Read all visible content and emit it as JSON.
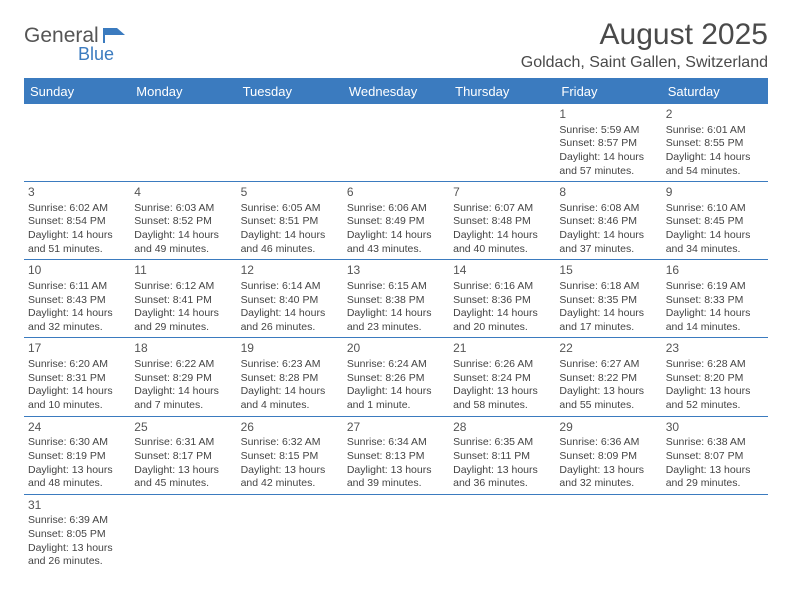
{
  "logo": {
    "word1": "General",
    "word2": "Blue"
  },
  "header": {
    "title": "August 2025",
    "location": "Goldach, Saint Gallen, Switzerland"
  },
  "colors": {
    "header_bg": "#3b7bbf",
    "header_text": "#ffffff",
    "rule": "#3b7bbf",
    "text": "#444444",
    "page_bg": "#ffffff"
  },
  "daysOfWeek": [
    "Sunday",
    "Monday",
    "Tuesday",
    "Wednesday",
    "Thursday",
    "Friday",
    "Saturday"
  ],
  "weeks": [
    [
      null,
      null,
      null,
      null,
      null,
      {
        "n": "1",
        "sr": "Sunrise: 5:59 AM",
        "ss": "Sunset: 8:57 PM",
        "dl1": "Daylight: 14 hours",
        "dl2": "and 57 minutes."
      },
      {
        "n": "2",
        "sr": "Sunrise: 6:01 AM",
        "ss": "Sunset: 8:55 PM",
        "dl1": "Daylight: 14 hours",
        "dl2": "and 54 minutes."
      }
    ],
    [
      {
        "n": "3",
        "sr": "Sunrise: 6:02 AM",
        "ss": "Sunset: 8:54 PM",
        "dl1": "Daylight: 14 hours",
        "dl2": "and 51 minutes."
      },
      {
        "n": "4",
        "sr": "Sunrise: 6:03 AM",
        "ss": "Sunset: 8:52 PM",
        "dl1": "Daylight: 14 hours",
        "dl2": "and 49 minutes."
      },
      {
        "n": "5",
        "sr": "Sunrise: 6:05 AM",
        "ss": "Sunset: 8:51 PM",
        "dl1": "Daylight: 14 hours",
        "dl2": "and 46 minutes."
      },
      {
        "n": "6",
        "sr": "Sunrise: 6:06 AM",
        "ss": "Sunset: 8:49 PM",
        "dl1": "Daylight: 14 hours",
        "dl2": "and 43 minutes."
      },
      {
        "n": "7",
        "sr": "Sunrise: 6:07 AM",
        "ss": "Sunset: 8:48 PM",
        "dl1": "Daylight: 14 hours",
        "dl2": "and 40 minutes."
      },
      {
        "n": "8",
        "sr": "Sunrise: 6:08 AM",
        "ss": "Sunset: 8:46 PM",
        "dl1": "Daylight: 14 hours",
        "dl2": "and 37 minutes."
      },
      {
        "n": "9",
        "sr": "Sunrise: 6:10 AM",
        "ss": "Sunset: 8:45 PM",
        "dl1": "Daylight: 14 hours",
        "dl2": "and 34 minutes."
      }
    ],
    [
      {
        "n": "10",
        "sr": "Sunrise: 6:11 AM",
        "ss": "Sunset: 8:43 PM",
        "dl1": "Daylight: 14 hours",
        "dl2": "and 32 minutes."
      },
      {
        "n": "11",
        "sr": "Sunrise: 6:12 AM",
        "ss": "Sunset: 8:41 PM",
        "dl1": "Daylight: 14 hours",
        "dl2": "and 29 minutes."
      },
      {
        "n": "12",
        "sr": "Sunrise: 6:14 AM",
        "ss": "Sunset: 8:40 PM",
        "dl1": "Daylight: 14 hours",
        "dl2": "and 26 minutes."
      },
      {
        "n": "13",
        "sr": "Sunrise: 6:15 AM",
        "ss": "Sunset: 8:38 PM",
        "dl1": "Daylight: 14 hours",
        "dl2": "and 23 minutes."
      },
      {
        "n": "14",
        "sr": "Sunrise: 6:16 AM",
        "ss": "Sunset: 8:36 PM",
        "dl1": "Daylight: 14 hours",
        "dl2": "and 20 minutes."
      },
      {
        "n": "15",
        "sr": "Sunrise: 6:18 AM",
        "ss": "Sunset: 8:35 PM",
        "dl1": "Daylight: 14 hours",
        "dl2": "and 17 minutes."
      },
      {
        "n": "16",
        "sr": "Sunrise: 6:19 AM",
        "ss": "Sunset: 8:33 PM",
        "dl1": "Daylight: 14 hours",
        "dl2": "and 14 minutes."
      }
    ],
    [
      {
        "n": "17",
        "sr": "Sunrise: 6:20 AM",
        "ss": "Sunset: 8:31 PM",
        "dl1": "Daylight: 14 hours",
        "dl2": "and 10 minutes."
      },
      {
        "n": "18",
        "sr": "Sunrise: 6:22 AM",
        "ss": "Sunset: 8:29 PM",
        "dl1": "Daylight: 14 hours",
        "dl2": "and 7 minutes."
      },
      {
        "n": "19",
        "sr": "Sunrise: 6:23 AM",
        "ss": "Sunset: 8:28 PM",
        "dl1": "Daylight: 14 hours",
        "dl2": "and 4 minutes."
      },
      {
        "n": "20",
        "sr": "Sunrise: 6:24 AM",
        "ss": "Sunset: 8:26 PM",
        "dl1": "Daylight: 14 hours",
        "dl2": "and 1 minute."
      },
      {
        "n": "21",
        "sr": "Sunrise: 6:26 AM",
        "ss": "Sunset: 8:24 PM",
        "dl1": "Daylight: 13 hours",
        "dl2": "and 58 minutes."
      },
      {
        "n": "22",
        "sr": "Sunrise: 6:27 AM",
        "ss": "Sunset: 8:22 PM",
        "dl1": "Daylight: 13 hours",
        "dl2": "and 55 minutes."
      },
      {
        "n": "23",
        "sr": "Sunrise: 6:28 AM",
        "ss": "Sunset: 8:20 PM",
        "dl1": "Daylight: 13 hours",
        "dl2": "and 52 minutes."
      }
    ],
    [
      {
        "n": "24",
        "sr": "Sunrise: 6:30 AM",
        "ss": "Sunset: 8:19 PM",
        "dl1": "Daylight: 13 hours",
        "dl2": "and 48 minutes."
      },
      {
        "n": "25",
        "sr": "Sunrise: 6:31 AM",
        "ss": "Sunset: 8:17 PM",
        "dl1": "Daylight: 13 hours",
        "dl2": "and 45 minutes."
      },
      {
        "n": "26",
        "sr": "Sunrise: 6:32 AM",
        "ss": "Sunset: 8:15 PM",
        "dl1": "Daylight: 13 hours",
        "dl2": "and 42 minutes."
      },
      {
        "n": "27",
        "sr": "Sunrise: 6:34 AM",
        "ss": "Sunset: 8:13 PM",
        "dl1": "Daylight: 13 hours",
        "dl2": "and 39 minutes."
      },
      {
        "n": "28",
        "sr": "Sunrise: 6:35 AM",
        "ss": "Sunset: 8:11 PM",
        "dl1": "Daylight: 13 hours",
        "dl2": "and 36 minutes."
      },
      {
        "n": "29",
        "sr": "Sunrise: 6:36 AM",
        "ss": "Sunset: 8:09 PM",
        "dl1": "Daylight: 13 hours",
        "dl2": "and 32 minutes."
      },
      {
        "n": "30",
        "sr": "Sunrise: 6:38 AM",
        "ss": "Sunset: 8:07 PM",
        "dl1": "Daylight: 13 hours",
        "dl2": "and 29 minutes."
      }
    ],
    [
      {
        "n": "31",
        "sr": "Sunrise: 6:39 AM",
        "ss": "Sunset: 8:05 PM",
        "dl1": "Daylight: 13 hours",
        "dl2": "and 26 minutes."
      },
      null,
      null,
      null,
      null,
      null,
      null
    ]
  ]
}
